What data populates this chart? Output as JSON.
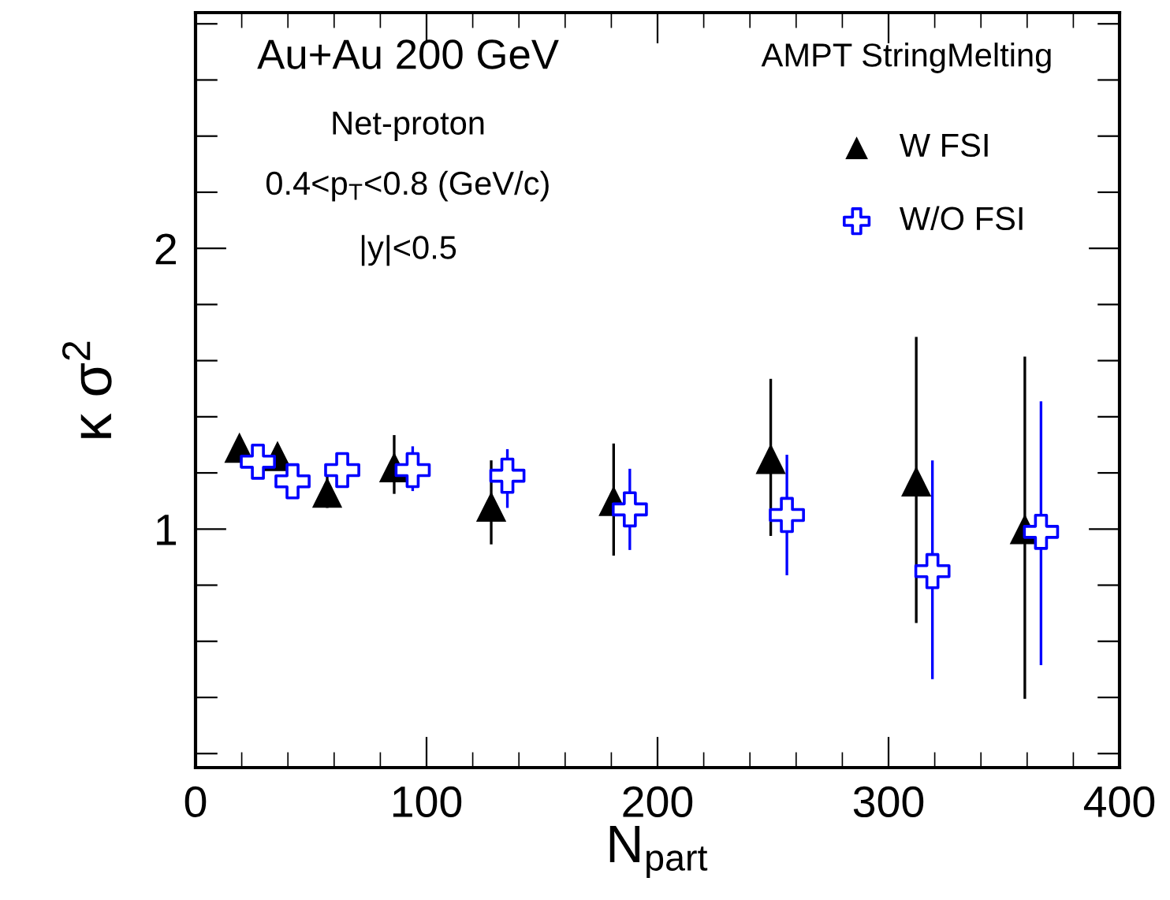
{
  "chart_data": {
    "type": "scatter",
    "xlabel": "N$_{part}$",
    "ylabel": "κ σ$^{2}$",
    "xlim": [
      0,
      400
    ],
    "xticks": [
      0,
      100,
      200,
      300,
      400
    ],
    "ylim": [
      0.15,
      2.84
    ],
    "yticks": [
      {
        "value": 0.2,
        "label": null
      },
      {
        "value": 0.4,
        "label": null
      },
      {
        "value": 0.6,
        "label": null
      },
      {
        "value": 0.8,
        "label": null
      },
      1,
      {
        "value": 1.2,
        "label": null
      },
      {
        "value": 1.4,
        "label": null
      },
      {
        "value": 1.6,
        "label": null
      },
      {
        "value": 1.8,
        "label": null
      },
      2,
      {
        "value": 2.2,
        "label": null
      },
      {
        "value": 2.4,
        "label": null
      },
      {
        "value": 2.6,
        "label": null
      },
      {
        "value": 2.8,
        "label": null
      }
    ],
    "grid": false,
    "legend": "top right",
    "annotations": [
      "Au+Au 200 GeV",
      "Net-proton",
      "0.4<p$_{T}$<0.8 (GeV/c)",
      "|y|<0.5",
      "AMPT StringMelting"
    ],
    "series": [
      {
        "name": "W FSI",
        "color": "#000000",
        "marker": "triangle",
        "x": [
          19,
          35.5,
          57,
          86,
          128,
          181,
          249,
          312,
          359
        ],
        "values": [
          1.29,
          1.26,
          1.13,
          1.22,
          1.08,
          1.1,
          1.25,
          1.17,
          1.0
        ],
        "errors": [
          null,
          null,
          [
            1.08,
            1.21
          ],
          [
            1.13,
            1.33
          ],
          [
            0.95,
            1.24
          ],
          [
            0.91,
            1.3
          ],
          [
            0.98,
            1.53
          ],
          [
            0.67,
            1.68
          ],
          [
            0.4,
            1.61
          ]
        ]
      },
      {
        "name": "W/O FSI",
        "color": "#0000ff",
        "marker": "cross",
        "x": [
          27,
          42,
          63.5,
          94,
          135,
          188,
          256,
          319,
          366
        ],
        "values": [
          1.24,
          1.17,
          1.21,
          1.21,
          1.19,
          1.07,
          1.05,
          0.85,
          0.99
        ],
        "errors": [
          null,
          null,
          null,
          [
            1.14,
            1.29
          ],
          [
            1.08,
            1.28
          ],
          [
            0.93,
            1.21
          ],
          [
            0.84,
            1.26
          ],
          [
            0.47,
            1.24
          ],
          [
            0.52,
            1.45
          ]
        ]
      }
    ]
  }
}
